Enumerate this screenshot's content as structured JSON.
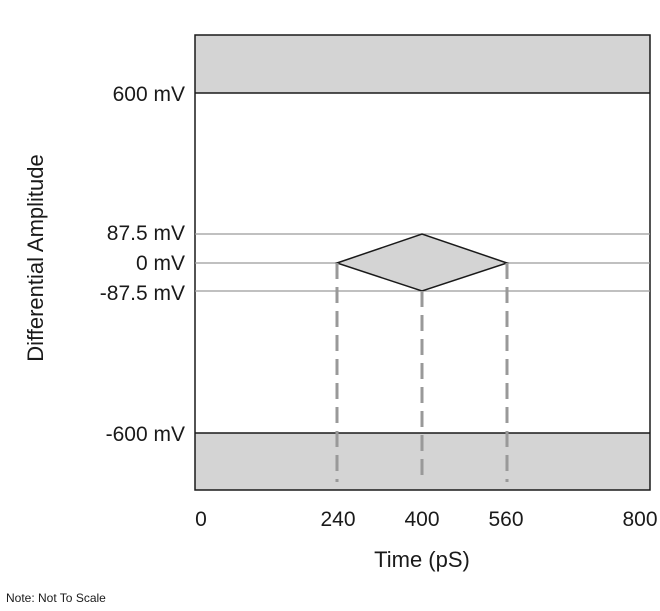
{
  "diagram": {
    "y_axis_label": "Differential Amplitude",
    "x_axis_label": "Time (pS)",
    "note": "Note: Not To Scale",
    "y_levels": [
      {
        "label": "600 mV",
        "value_mv": 600
      },
      {
        "label": "87.5 mV",
        "value_mv": 87.5
      },
      {
        "label": "0 mV",
        "value_mv": 0
      },
      {
        "label": "-87.5 mV",
        "value_mv": -87.5
      },
      {
        "label": "-600 mV",
        "value_mv": -600
      }
    ],
    "x_ticks": [
      {
        "label": "0",
        "value_ps": 0
      },
      {
        "label": "240",
        "value_ps": 240
      },
      {
        "label": "400",
        "value_ps": 400
      },
      {
        "label": "560",
        "value_ps": 560
      },
      {
        "label": "800",
        "value_ps": 800
      }
    ],
    "eye_mask": {
      "left_ps": 240,
      "center_ps": 400,
      "right_ps": 560,
      "top_mv": 87.5,
      "bottom_mv": -87.5
    },
    "colors": {
      "fill": "#d4d4d4",
      "line": "#1a1a1a",
      "thin_line": "#9a9a9a",
      "dashed": "#999999"
    }
  }
}
